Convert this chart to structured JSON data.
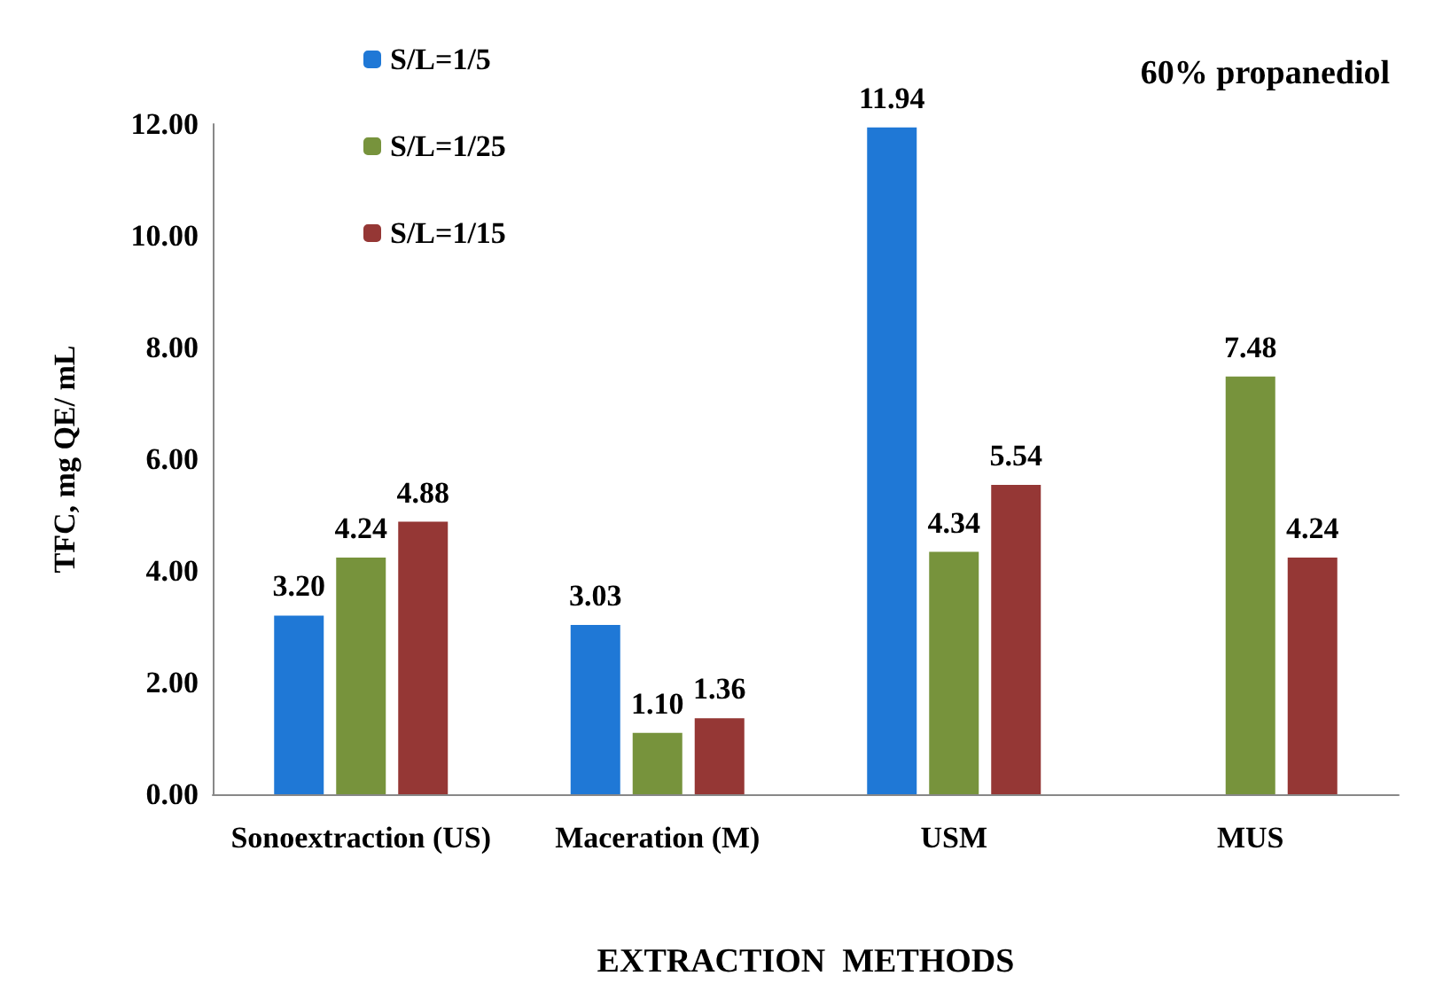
{
  "chart_data": {
    "type": "bar",
    "xlabel": "EXTRACTION  METHODS",
    "ylabel": "TFC, mg QE/ mL",
    "annotations": [
      "60% propanediol"
    ],
    "categories": [
      "Sonoextraction (US)",
      "Maceration (M)",
      "USM",
      "MUS"
    ],
    "series": [
      {
        "name": "S/L=1/5",
        "color": "#1f78d6",
        "values": [
          3.2,
          3.03,
          11.94,
          null
        ],
        "value_labels": [
          "3.20",
          "3.03",
          "11.94",
          null
        ]
      },
      {
        "name": "S/L=1/25",
        "color": "#77933c",
        "values": [
          4.24,
          1.1,
          4.34,
          7.48
        ],
        "value_labels": [
          "4.24",
          "1.10",
          "4.34",
          "7.48"
        ]
      },
      {
        "name": "S/L=1/15",
        "color": "#953735",
        "values": [
          4.88,
          1.36,
          5.54,
          4.24
        ],
        "value_labels": [
          "4.88",
          "1.36",
          "5.54",
          "4.24"
        ]
      }
    ],
    "ylim": [
      0,
      12
    ],
    "yticks": [
      {
        "value": 0,
        "label": "0.00"
      },
      {
        "value": 2,
        "label": "2.00"
      },
      {
        "value": 4,
        "label": "4.00"
      },
      {
        "value": 6,
        "label": "6.00"
      },
      {
        "value": 8,
        "label": "8.00"
      },
      {
        "value": 10,
        "label": "10.00"
      },
      {
        "value": 12,
        "label": "12.00"
      }
    ],
    "grid": false,
    "legend": "top left"
  }
}
